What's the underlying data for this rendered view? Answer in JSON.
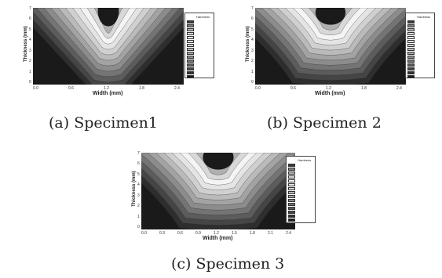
{
  "chart_data": [
    {
      "type": "heatmap",
      "caption": "(a) Specimen1",
      "xlabel": "Width (mm)",
      "ylabel": "Thickness (mm)",
      "x_ticks": [
        "0.0",
        "0.6",
        "1.2",
        "1.8",
        "2.4"
      ],
      "y_ticks": [
        "7",
        "6",
        "5",
        "4",
        "3",
        "2",
        "1",
        "0"
      ],
      "xlim": [
        0,
        2.4
      ],
      "ylim": [
        0,
        7
      ],
      "pattern": "narrow-v",
      "legend_title": "Hardness",
      "legend_values": [
        "",
        "",
        "",
        "",
        "",
        "",
        "",
        "",
        "",
        "",
        "",
        "",
        "",
        "",
        ""
      ]
    },
    {
      "type": "heatmap",
      "caption": "(b) Specimen 2",
      "xlabel": "Width (mm)",
      "ylabel": "Thickness (mm)",
      "x_ticks": [
        "0.0",
        "0.6",
        "1.2",
        "1.8",
        "2.4"
      ],
      "y_ticks": [
        "7",
        "6",
        "5",
        "4",
        "3",
        "2",
        "1",
        "0"
      ],
      "xlim": [
        0,
        2.4
      ],
      "ylim": [
        0,
        7
      ],
      "pattern": "wide-v",
      "legend_title": "Hardness",
      "legend_values": [
        "",
        "",
        "",
        "",
        "",
        "",
        "",
        "",
        "",
        "",
        "",
        "",
        "",
        "",
        ""
      ]
    },
    {
      "type": "heatmap",
      "caption": "(c) Specimen 3",
      "xlabel": "Width (mm)",
      "ylabel": "Thickness (mm)",
      "x_ticks": [
        "0.0",
        "0.3",
        "0.6",
        "0.9",
        "1.2",
        "1.5",
        "1.8",
        "2.1",
        "2.4"
      ],
      "y_ticks": [
        "7",
        "6",
        "5",
        "4",
        "3",
        "2",
        "1",
        "0"
      ],
      "xlim": [
        0,
        2.4
      ],
      "ylim": [
        0,
        7
      ],
      "pattern": "wide-v",
      "legend_title": "Hardness",
      "legend_values": [
        "",
        "",
        "",
        "",
        "",
        "",
        "",
        "",
        "",
        "",
        "",
        "",
        "",
        "",
        ""
      ]
    }
  ],
  "colors": {
    "contour_levels": [
      "#1a1a1a",
      "#2e2e2e",
      "#454545",
      "#5c5c5c",
      "#747474",
      "#8c8c8c",
      "#a3a3a3",
      "#bababa",
      "#d0d0d0",
      "#e4e4e4",
      "#f4f4f4",
      "#d8d8d8",
      "#b0b0b0",
      "#7d7d7d",
      "#3c3c3c"
    ]
  }
}
